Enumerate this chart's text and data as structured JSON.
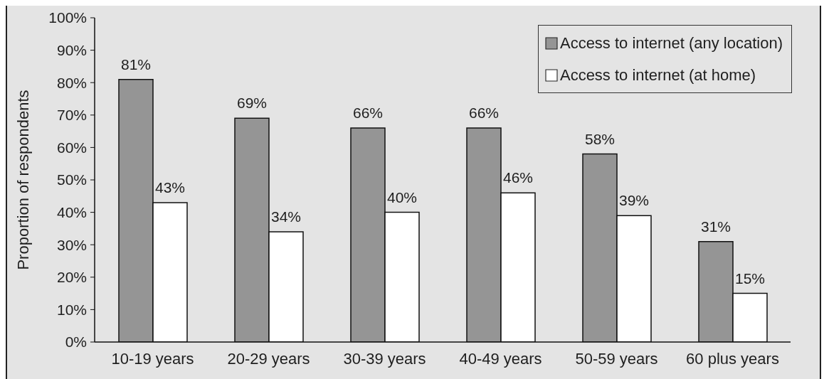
{
  "chart_data": {
    "type": "bar",
    "ylabel": "Proportion of respondents",
    "categories": [
      "10-19 years",
      "20-29 years",
      "30-39 years",
      "40-49 years",
      "50-59 years",
      "60 plus years"
    ],
    "series": [
      {
        "name": "Access to internet (any location)",
        "color": "#959595",
        "values": [
          81,
          69,
          66,
          66,
          58,
          31
        ],
        "value_labels": [
          "81%",
          "69%",
          "66%",
          "66%",
          "58%",
          "31%"
        ]
      },
      {
        "name": "Access to internet (at home)",
        "color": "#ffffff",
        "values": [
          43,
          34,
          40,
          46,
          39,
          15
        ],
        "value_labels": [
          "43%",
          "34%",
          "40%",
          "46%",
          "39%",
          "15%"
        ]
      }
    ],
    "ylim": [
      0,
      100
    ],
    "yticks": [
      {
        "value": 0,
        "label": "0%"
      },
      {
        "value": 10,
        "label": "10%"
      },
      {
        "value": 20,
        "label": "20%"
      },
      {
        "value": 30,
        "label": "30%"
      },
      {
        "value": 40,
        "label": "40%"
      },
      {
        "value": 50,
        "label": "50%"
      },
      {
        "value": 60,
        "label": "60%"
      },
      {
        "value": 70,
        "label": "70%"
      },
      {
        "value": 80,
        "label": "80%"
      },
      {
        "value": 90,
        "label": "90%"
      },
      {
        "value": 100,
        "label": "100%"
      }
    ],
    "legend": "top right",
    "grid": false
  }
}
